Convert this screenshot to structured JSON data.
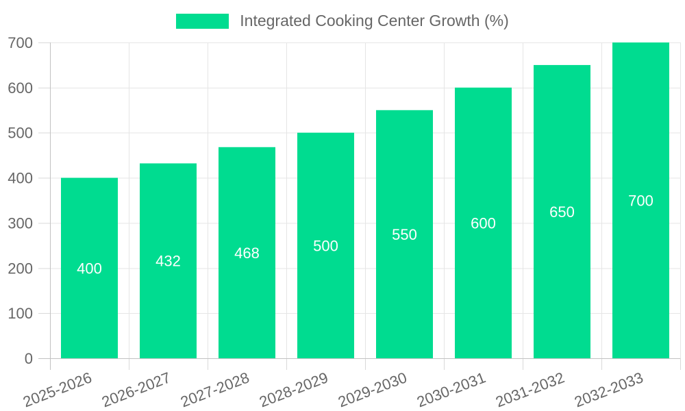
{
  "legend": {
    "position": "top"
  },
  "chart_data": {
    "type": "bar",
    "title": "Integrated Cooking Center Growth (%)",
    "categories": [
      "2025-2026",
      "2026-2027",
      "2027-2028",
      "2028-2029",
      "2029-2030",
      "2030-2031",
      "2031-2032",
      "2032-2033"
    ],
    "values": [
      400,
      432,
      468,
      500,
      550,
      600,
      650,
      700
    ],
    "xlabel": "",
    "ylabel": "",
    "ylim": [
      0,
      700
    ],
    "yticks": [
      0,
      100,
      200,
      300,
      400,
      500,
      600,
      700
    ],
    "grid": "on",
    "legend_position": "top",
    "x_label_rotation_deg": -21,
    "colors": {
      "bar": "#00DC90",
      "bar_value_label": "#ffffff",
      "axis_text": "#666666",
      "gridline": "#e5e5e5",
      "axis_line": "#c2c2c2",
      "tick": "#d9d9d9",
      "background": "#ffffff"
    }
  }
}
